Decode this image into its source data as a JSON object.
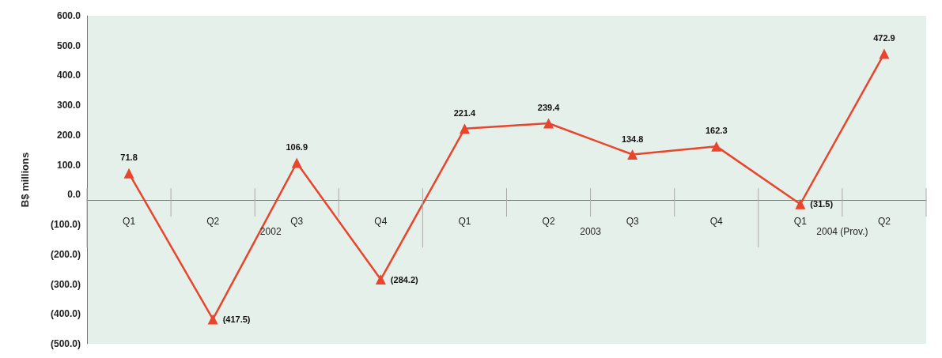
{
  "chart_data": {
    "type": "line",
    "ylabel": "B$ millions",
    "categories": [
      "Q1",
      "Q2",
      "Q3",
      "Q4",
      "Q1",
      "Q2",
      "Q3",
      "Q4",
      "Q1",
      "Q2"
    ],
    "series": [
      {
        "color": "#e8452c",
        "values": [
          71.8,
          -417.5,
          106.9,
          -284.2,
          221.4,
          239.4,
          134.8,
          162.3,
          -31.5,
          472.9
        ],
        "value_labels": [
          "71.8",
          "(417.5)",
          "106.9",
          "(284.2)",
          "221.4",
          "239.4",
          "134.8",
          "162.3",
          "(31.5)",
          "472.9"
        ]
      }
    ],
    "ylim": [
      -500,
      600
    ],
    "yticks": [
      {
        "value": -500,
        "label": "(500.0)"
      },
      {
        "value": -400,
        "label": "(400.0)"
      },
      {
        "value": -300,
        "label": "(300.0)"
      },
      {
        "value": -200,
        "label": "(200.0)"
      },
      {
        "value": -100,
        "label": "(100.0)"
      },
      {
        "value": 0,
        "label": "0.0"
      },
      {
        "value": 100,
        "label": "100.0"
      },
      {
        "value": 200,
        "label": "200.0"
      },
      {
        "value": 300,
        "label": "300.0"
      },
      {
        "value": 400,
        "label": "400.0"
      },
      {
        "value": 500,
        "label": "500.0"
      },
      {
        "value": 600,
        "label": "600.0"
      }
    ],
    "annotations": [
      "2002",
      "2003",
      "2004 (Prov.)"
    ],
    "grid": false,
    "marker": "triangle",
    "line_style": "solid"
  }
}
